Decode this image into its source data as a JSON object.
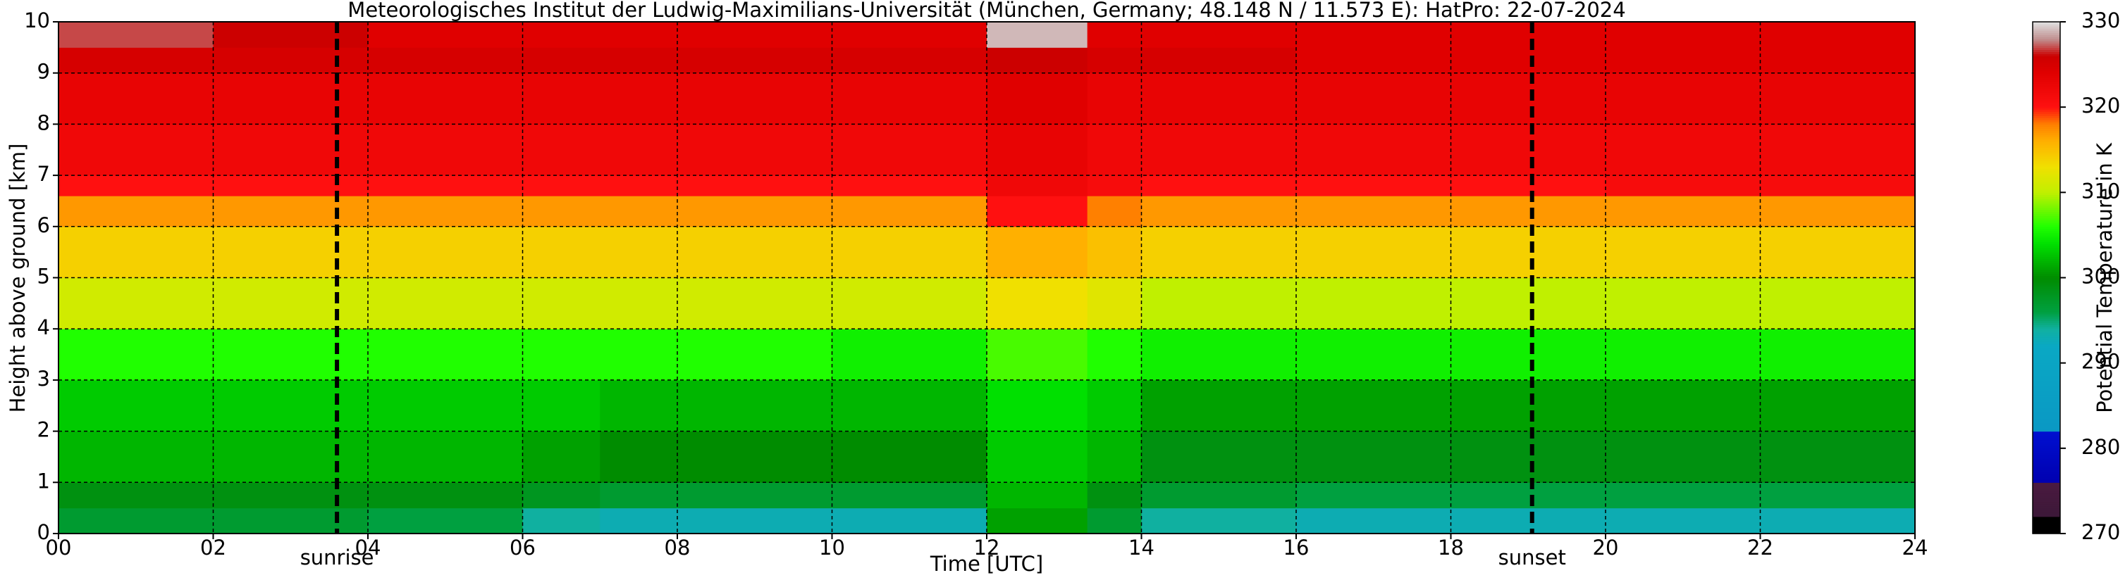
{
  "chart_data": {
    "type": "heatmap",
    "title": "Meteorologisches Institut der Ludwig-Maximilians-Universität (München, Germany; 48.148 N / 11.573 E):    HatPro: 22-07-2024",
    "xlabel": "Time [UTC]",
    "ylabel": "Height above ground [km]",
    "colorbar_label": "Potential Temperature in K",
    "xlim": [
      0,
      24
    ],
    "ylim": [
      0,
      10
    ],
    "clim": [
      270,
      330
    ],
    "xticks": [
      {
        "value": 0,
        "label": "00"
      },
      {
        "value": 2,
        "label": "02"
      },
      {
        "value": 4,
        "label": "04"
      },
      {
        "value": 6,
        "label": "06"
      },
      {
        "value": 8,
        "label": "08"
      },
      10,
      12,
      14,
      16,
      18,
      20,
      22,
      24
    ],
    "yticks": [
      0,
      1,
      2,
      3,
      4,
      5,
      6,
      7,
      8,
      9,
      10
    ],
    "cticks": [
      270,
      280,
      290,
      300,
      310,
      320,
      330
    ],
    "grid": true,
    "annotations": [
      {
        "text": "sunrise",
        "x": 3.6
      },
      {
        "text": "sunset",
        "x": 19.05
      }
    ],
    "x_bins": [
      0,
      2,
      4,
      6,
      7,
      8,
      10,
      12,
      13.3,
      14,
      16,
      18,
      20,
      22,
      24
    ],
    "y_bins": [
      0,
      0.5,
      1,
      2,
      3,
      4,
      5,
      6,
      6.6,
      7,
      8,
      9,
      9.5,
      10
    ],
    "values": [
      [
        297,
        299,
        302,
        303,
        306,
        311,
        314,
        317,
        320,
        322,
        323,
        325,
        327
      ],
      [
        297,
        299,
        302,
        303,
        306,
        311,
        314,
        317,
        320,
        322,
        323,
        325,
        326
      ],
      [
        296,
        299,
        302,
        303,
        306,
        311,
        314,
        317,
        320,
        322,
        323,
        325,
        324
      ],
      [
        294,
        298,
        301,
        303,
        306,
        311,
        314,
        317,
        320,
        322,
        323,
        325,
        324
      ],
      [
        293,
        297,
        300,
        302,
        306,
        311,
        314,
        317,
        320,
        322,
        323,
        325,
        324
      ],
      [
        293,
        297,
        300,
        302,
        306,
        311,
        314,
        317,
        320,
        322,
        323,
        325,
        324
      ],
      [
        293,
        297,
        300,
        302,
        305,
        311,
        314,
        317,
        320,
        322,
        323,
        325,
        324
      ],
      [
        301,
        302,
        303,
        304,
        307,
        313,
        316,
        320,
        322,
        323,
        324,
        326,
        329
      ],
      [
        297,
        299,
        302,
        303,
        306,
        312,
        315,
        318,
        321,
        322,
        323,
        325,
        324
      ],
      [
        294,
        297,
        299,
        301,
        305,
        310,
        314,
        317,
        320,
        322,
        323,
        325,
        324
      ],
      [
        293,
        296,
        299,
        301,
        305,
        310,
        314,
        317,
        320,
        322,
        323,
        324,
        324
      ],
      [
        293,
        296,
        299,
        301,
        305,
        310,
        314,
        317,
        320,
        322,
        323,
        324,
        324
      ],
      [
        293,
        296,
        299,
        301,
        305,
        310,
        314,
        317,
        321,
        322,
        323,
        324,
        324
      ],
      [
        293,
        296,
        299,
        301,
        305,
        310,
        314,
        317,
        321,
        322,
        323,
        324,
        324
      ]
    ],
    "colorscale": [
      [
        270,
        "#000000"
      ],
      [
        272,
        "#000000"
      ],
      [
        272.01,
        "#3c1838"
      ],
      [
        276,
        "#4a1a40"
      ],
      [
        276.01,
        "#0000b0"
      ],
      [
        282,
        "#0010d0"
      ],
      [
        282.01,
        "#0a98c4"
      ],
      [
        292,
        "#0aa8c4"
      ],
      [
        294,
        "#10b0a0"
      ],
      [
        296,
        "#00a040"
      ],
      [
        300,
        "#008c00"
      ],
      [
        304,
        "#00e000"
      ],
      [
        306,
        "#20ff00"
      ],
      [
        310,
        "#c0f000"
      ],
      [
        313,
        "#f0e000"
      ],
      [
        316,
        "#ffb000"
      ],
      [
        318,
        "#ff8000"
      ],
      [
        320,
        "#ff1010"
      ],
      [
        324,
        "#e00000"
      ],
      [
        326,
        "#cc0000"
      ],
      [
        328,
        "#c09090"
      ],
      [
        330,
        "#e0e0e0"
      ]
    ]
  }
}
